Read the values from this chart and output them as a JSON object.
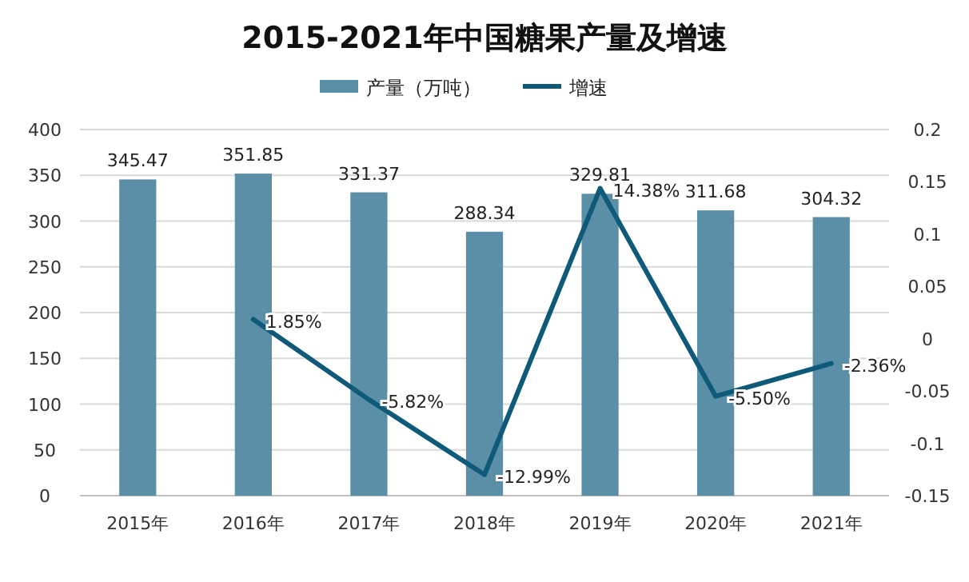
{
  "chart_data": {
    "type": "bar",
    "title": "2015-2021年中国糖果产量及增速",
    "categories": [
      "2015年",
      "2016年",
      "2017年",
      "2018年",
      "2019年",
      "2020年",
      "2021年"
    ],
    "series": [
      {
        "name": "产量（万吨）",
        "color": "#5b8fa8",
        "values": [
          345.47,
          351.85,
          331.37,
          288.34,
          329.81,
          311.68,
          304.32
        ],
        "value_labels": [
          "345.47",
          "351.85",
          "331.37",
          "288.34",
          "329.81",
          "311.68",
          "304.32"
        ]
      },
      {
        "name": "增速",
        "type": "line",
        "axis": "y2",
        "color": "#0e5a78",
        "values": [
          null,
          0.0185,
          -0.0582,
          -0.1299,
          0.1438,
          -0.055,
          -0.0236
        ],
        "value_labels": [
          null,
          "1.85%",
          "-5.82%",
          "-12.99%",
          "14.38%",
          "-5.50%",
          "-2.36%"
        ]
      }
    ],
    "ylim": [
      0,
      400
    ],
    "yticks": [
      0,
      50,
      100,
      150,
      200,
      250,
      300,
      350,
      400
    ],
    "y2lim": [
      -0.15,
      0.2
    ],
    "y2ticks": [
      -0.15,
      -0.1,
      -0.05,
      0,
      0.05,
      0.1,
      0.15,
      0.2
    ],
    "grid": "y",
    "legend": "top",
    "marker": "none",
    "line_style": "solid"
  }
}
